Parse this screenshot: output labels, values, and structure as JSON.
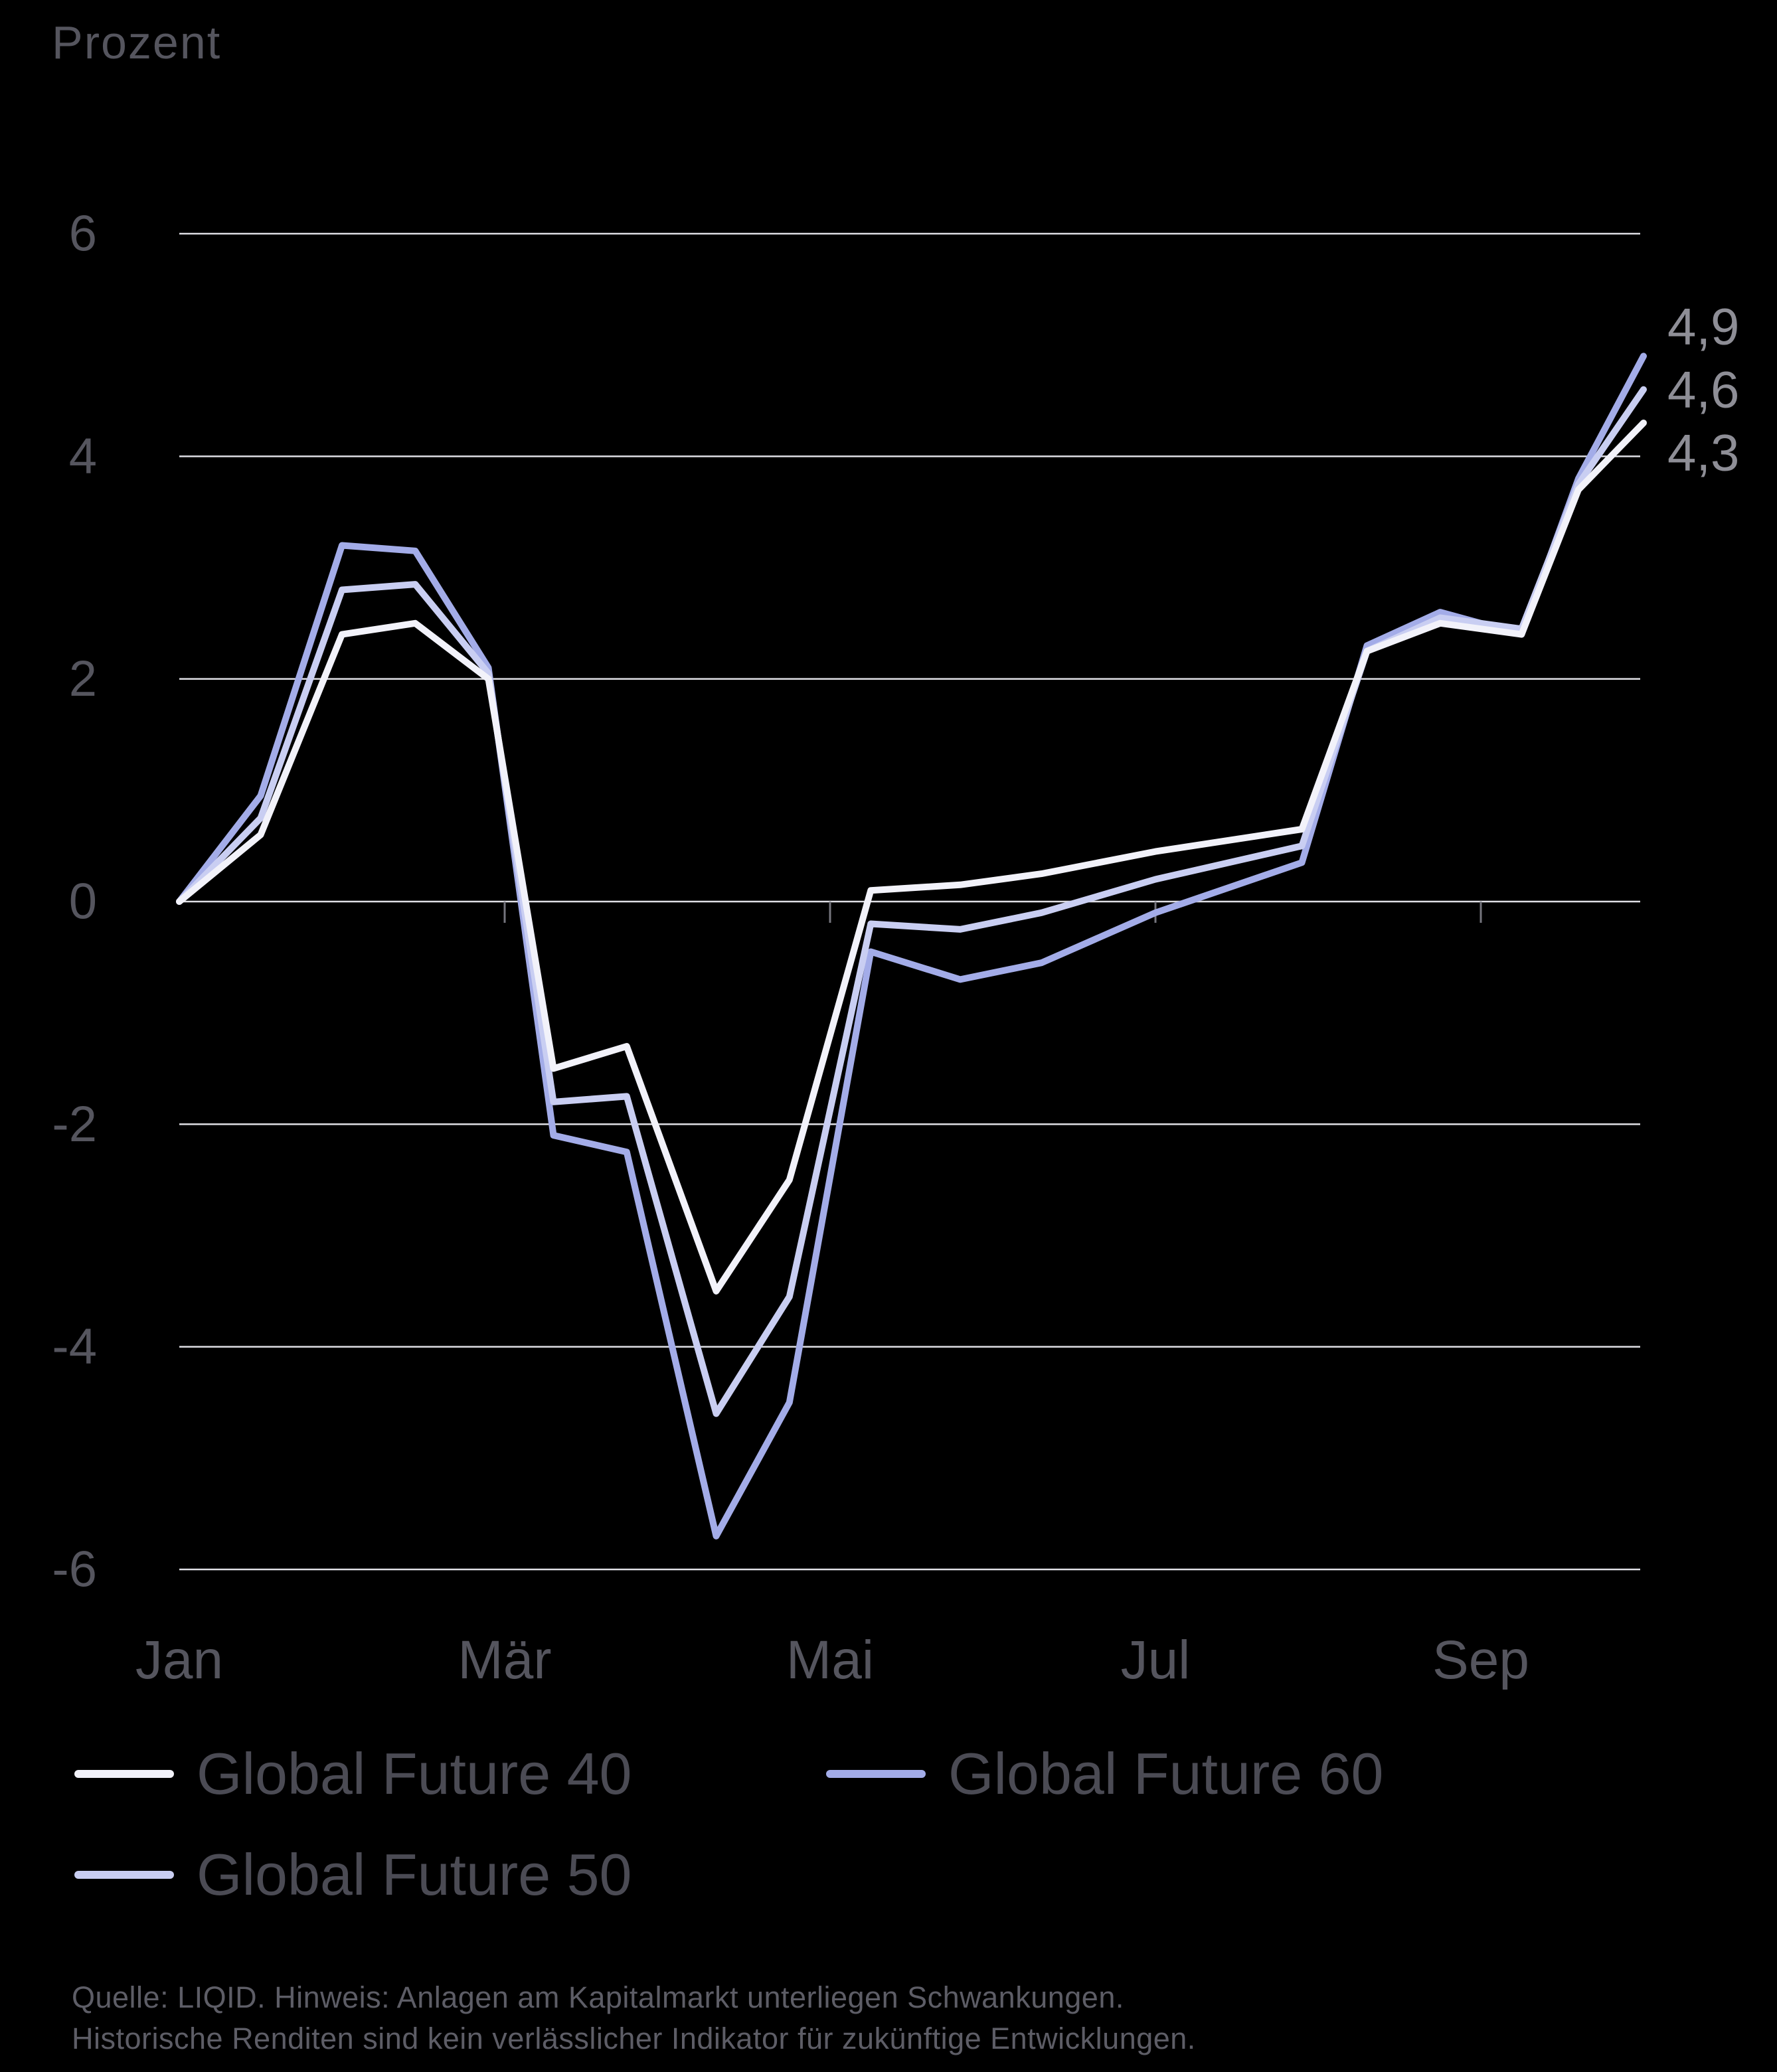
{
  "title": "Prozent",
  "colors": {
    "background": "#000000",
    "grid": "#dfdfe5",
    "axis_text": "#55555e",
    "tick": "#75757d",
    "end_label_text": "#8e8e96",
    "legend_text": "#4b4b54",
    "footnote_text": "#5d5d66",
    "gf40": "#f2f2fa",
    "gf50": "#c9cef2",
    "gf60": "#a3ace8"
  },
  "chart_data": {
    "type": "line",
    "title": "Prozent",
    "ylabel": "Prozent",
    "ylim": [
      -6,
      6
    ],
    "grid": true,
    "legend_position": "bottom",
    "x_unit": "month index (0 = Jan)",
    "x": [
      0,
      0.5,
      1.0,
      1.45,
      1.9,
      2.3,
      2.75,
      3.3,
      3.75,
      4.25,
      4.8,
      5.3,
      6.0,
      6.9,
      7.3,
      7.75,
      8.25,
      8.6,
      9.0
    ],
    "yticks": [
      {
        "value": 6,
        "label": "6"
      },
      {
        "value": 4,
        "label": "4"
      },
      {
        "value": 2,
        "label": "2"
      },
      {
        "value": 0,
        "label": "0"
      },
      {
        "value": -2,
        "label": "-2"
      },
      {
        "value": -4,
        "label": "-4"
      },
      {
        "value": -6,
        "label": "-6"
      }
    ],
    "xticks": [
      {
        "position": 0,
        "label": "Jan"
      },
      {
        "position": 2,
        "label": "Mär"
      },
      {
        "position": 4,
        "label": "Mai"
      },
      {
        "position": 6,
        "label": "Jul"
      },
      {
        "position": 8,
        "label": "Sep"
      }
    ],
    "series": [
      {
        "name": "Global Future 40",
        "color_key": "gf40",
        "end_label": "4,3",
        "values": [
          0,
          0.6,
          2.4,
          2.5,
          2.0,
          -1.5,
          -1.3,
          -3.5,
          -2.5,
          0.1,
          0.15,
          0.25,
          0.45,
          0.65,
          2.25,
          2.5,
          2.4,
          3.7,
          4.3
        ]
      },
      {
        "name": "Global Future 50",
        "color_key": "gf50",
        "end_label": "4,6",
        "values": [
          0,
          0.75,
          2.8,
          2.85,
          2.05,
          -1.8,
          -1.75,
          -4.6,
          -3.55,
          -0.2,
          -0.25,
          -0.1,
          0.2,
          0.5,
          2.25,
          2.55,
          2.45,
          3.75,
          4.6
        ]
      },
      {
        "name": "Global Future 60",
        "color_key": "gf60",
        "end_label": "4,9",
        "values": [
          0,
          0.95,
          3.2,
          3.15,
          2.1,
          -2.1,
          -2.25,
          -5.7,
          -4.5,
          -0.45,
          -0.7,
          -0.55,
          -0.1,
          0.35,
          2.3,
          2.6,
          2.4,
          3.8,
          4.9
        ]
      }
    ]
  },
  "legend": {
    "rows": [
      [
        {
          "label": "Global Future 40",
          "color_key": "gf40"
        },
        {
          "label": "Global Future 60",
          "color_key": "gf60"
        }
      ],
      [
        {
          "label": "Global Future 50",
          "color_key": "gf50"
        }
      ]
    ]
  },
  "footnote": {
    "line1": "Quelle: LIQID. Hinweis: Anlagen am Kapitalmarkt unterliegen Schwankungen.",
    "line2": "Historische Renditen sind kein verlässlicher Indikator für zukünftige Entwicklungen."
  }
}
